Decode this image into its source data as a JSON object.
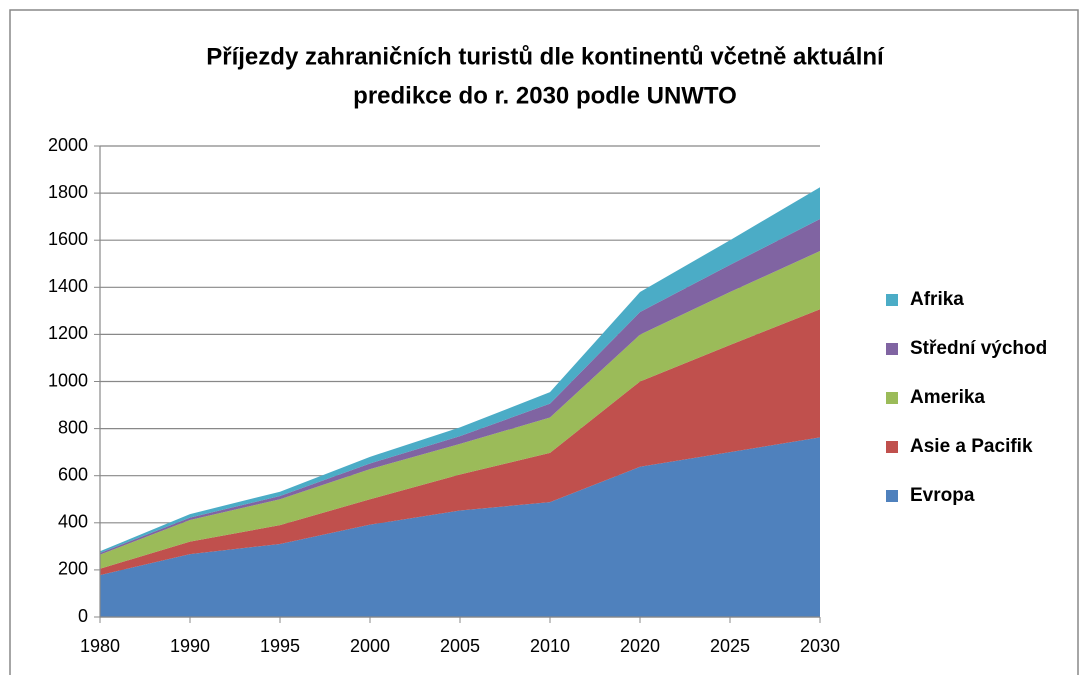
{
  "chart_data": {
    "type": "stacked-area",
    "title": [
      "Příjezdy zahraničních turistů dle kontinentů včetně aktuální",
      "predikce do r. 2030 podle UNWTO"
    ],
    "categories": [
      "1980",
      "1990",
      "1995",
      "2000",
      "2005",
      "2010",
      "2020",
      "2025",
      "2030"
    ],
    "series": [
      {
        "name": "Evropa",
        "color": "#4f81bd",
        "values": [
          178,
          267,
          310,
          392,
          452,
          488,
          638,
          700,
          763
        ]
      },
      {
        "name": "Asie a Pacifik",
        "color": "#c0504d",
        "values": [
          27,
          53,
          80,
          108,
          153,
          209,
          362,
          455,
          544
        ]
      },
      {
        "name": "Amerika",
        "color": "#9bbb59",
        "values": [
          60,
          92,
          110,
          128,
          130,
          150,
          199,
          225,
          247
        ]
      },
      {
        "name": "Střední východ",
        "color": "#8064a2",
        "values": [
          7,
          10,
          14,
          24,
          33,
          59,
          96,
          115,
          136
        ]
      },
      {
        "name": "Afrika",
        "color": "#4bacc6",
        "values": [
          7,
          15,
          18,
          28,
          37,
          49,
          85,
          105,
          135
        ]
      }
    ],
    "ylim": [
      0,
      2000
    ],
    "yticks": [
      0,
      200,
      400,
      600,
      800,
      1000,
      1200,
      1400,
      1600,
      1800,
      2000
    ],
    "grid": true,
    "legend": "right"
  }
}
